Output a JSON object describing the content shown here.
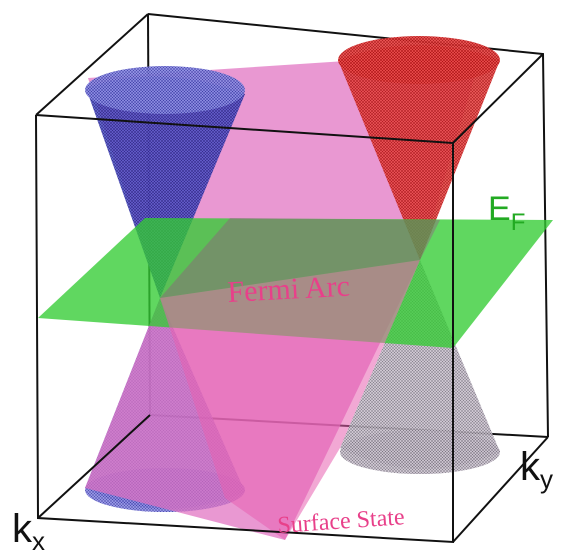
{
  "labels": {
    "ef_main": "E",
    "ef_sub": "F",
    "fermi_arc": "Fermi Arc",
    "surface_state": "Surface State",
    "kx_main": "k",
    "kx_sub": "x",
    "ky_main": "k",
    "ky_sub": "y"
  },
  "colors": {
    "surface_plane": "#e070c0",
    "fermi_plane": "#33cc33",
    "cone_left": "#3a3ab8",
    "cone_right": "#e02828",
    "label_pink": "#e8408a",
    "label_green": "#22aa22",
    "box_edge": "#111111"
  }
}
